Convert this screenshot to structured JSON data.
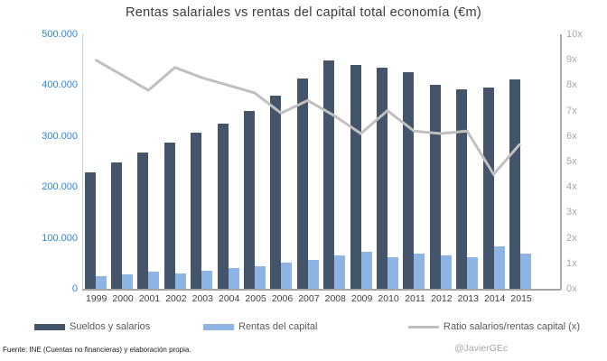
{
  "title": "Rentas salariales vs rentas del capital total economía (€m)",
  "footer": {
    "source": "Fuente: INE (Cuentas no financieras) y elaboración propia.",
    "credit": "@JavierGEc"
  },
  "legend": [
    {
      "label": "Sueldos y salarios",
      "color": "#44546a",
      "type": "bar"
    },
    {
      "label": "Rentas del capital",
      "color": "#8eb4e3",
      "type": "bar"
    },
    {
      "label": "Ratio salarios/rentas capital (x)",
      "color": "#c0c0c0",
      "type": "line"
    }
  ],
  "axes": {
    "left_ticks": [
      "500.000",
      "400.000",
      "300.000",
      "200.000",
      "100.000",
      "0"
    ],
    "right_ticks": [
      "10x",
      "9x",
      "8x",
      "7x",
      "6x",
      "5x",
      "4x",
      "3x",
      "2x",
      "1x",
      "0x"
    ]
  },
  "chart_data": {
    "type": "bar+line",
    "title": "Rentas salariales vs rentas del capital total economía (€m)",
    "categories": [
      "1999",
      "2000",
      "2001",
      "2002",
      "2003",
      "2004",
      "2005",
      "2006",
      "2007",
      "2008",
      "2009",
      "2010",
      "2011",
      "2012",
      "2013",
      "2014",
      "2015"
    ],
    "series": [
      {
        "name": "Sueldos y salarios",
        "type": "bar",
        "axis": "left",
        "color": "#44546a",
        "values": [
          229000,
          248000,
          267000,
          287000,
          306000,
          325000,
          350000,
          380000,
          414000,
          448000,
          440000,
          434000,
          426000,
          400000,
          392000,
          396000,
          411000
        ]
      },
      {
        "name": "Rentas del capital",
        "type": "bar",
        "axis": "left",
        "color": "#8eb4e3",
        "values": [
          25000,
          29000,
          34000,
          31000,
          35000,
          40000,
          44000,
          52000,
          56000,
          65000,
          73000,
          62000,
          70000,
          66000,
          62000,
          84000,
          70000
        ]
      },
      {
        "name": "Ratio salarios/rentas capital (x)",
        "type": "line",
        "axis": "right",
        "color": "#c0c0c0",
        "values": [
          9.0,
          8.4,
          7.8,
          8.7,
          8.3,
          8.0,
          7.7,
          6.9,
          7.4,
          6.8,
          6.1,
          7.0,
          6.2,
          6.1,
          6.2,
          4.5,
          5.7
        ]
      }
    ],
    "left_axis": {
      "min": 0,
      "max": 500000,
      "tick_step": 100000
    },
    "right_axis": {
      "min": 0,
      "max": 10,
      "tick_step": 1
    },
    "grid": false,
    "legend_position": "bottom"
  }
}
